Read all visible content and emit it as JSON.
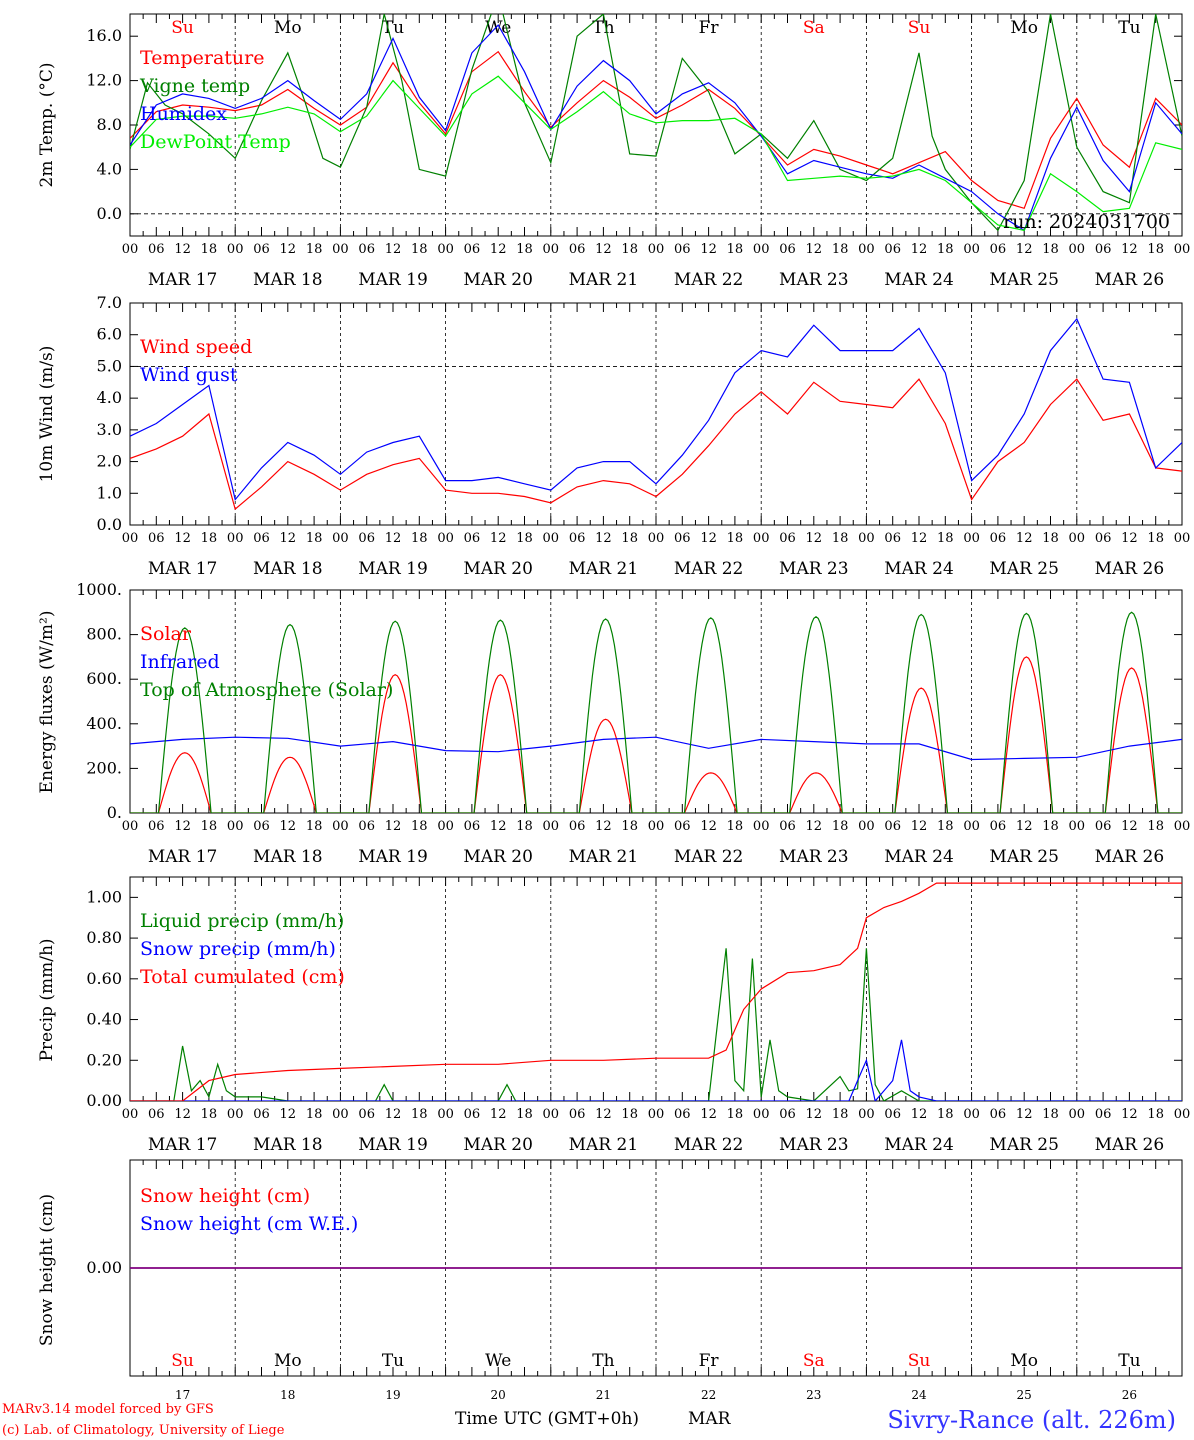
{
  "station": "Sivry-Rance (alt. 226m)",
  "run_label": "run: 2024031700",
  "credits": [
    "MARv3.14 model forced by GFS",
    "(c) Lab. of Climatology, University of Liege"
  ],
  "x_axis": {
    "hour_ticks": [
      "00",
      "06",
      "12",
      "18"
    ],
    "dates": [
      "MAR 17",
      "MAR 18",
      "MAR 19",
      "MAR 20",
      "MAR 21",
      "MAR 22",
      "MAR 23",
      "MAR 24",
      "MAR 25",
      "MAR 26"
    ],
    "day_numbers": [
      "17",
      "18",
      "19",
      "20",
      "21",
      "22",
      "23",
      "24",
      "25",
      "26"
    ],
    "weekdays": [
      "Su",
      "Mo",
      "Tu",
      "We",
      "Th",
      "Fr",
      "Sa",
      "Su",
      "Mo",
      "Tu"
    ],
    "weekend_flags": [
      true,
      false,
      false,
      false,
      false,
      false,
      true,
      true,
      false,
      false
    ],
    "title": "Time UTC (GMT+0h)",
    "month": "MAR"
  },
  "colors": {
    "red": "#ff0000",
    "green": "#008000",
    "blue": "#0000ff",
    "lightgreen": "#00ee00",
    "weekend": "#ff0000",
    "purple": "#800080"
  },
  "chart_data": [
    {
      "type": "line",
      "ylabel": "2m Temp. (°C)",
      "ylim": [
        -2.0,
        18.0
      ],
      "yticks": [
        "0.0",
        "4.0",
        "8.0",
        "12.0",
        "16.0"
      ],
      "x_unit": "hours since MAR 17 00 UTC",
      "series": [
        {
          "name": "Temperature",
          "color": "red",
          "x": [
            0,
            6,
            12,
            18,
            24,
            30,
            36,
            42,
            48,
            54,
            60,
            66,
            72,
            78,
            84,
            90,
            96,
            102,
            108,
            114,
            120,
            126,
            132,
            138,
            144,
            150,
            156,
            162,
            168,
            174,
            180,
            186,
            192,
            198,
            204,
            210,
            216,
            222,
            228,
            234,
            240
          ],
          "y": [
            6.8,
            9.2,
            9.8,
            9.6,
            9.3,
            9.8,
            11.2,
            9.5,
            8.0,
            9.6,
            13.6,
            10.0,
            7.2,
            12.8,
            14.6,
            11.0,
            7.8,
            10.0,
            12.0,
            10.5,
            8.6,
            9.8,
            11.2,
            9.5,
            7.0,
            4.4,
            5.8,
            5.2,
            4.4,
            3.6,
            4.6,
            5.6,
            3.0,
            1.2,
            0.5,
            6.8,
            10.4,
            6.2,
            4.2,
            10.4,
            8.0
          ]
        },
        {
          "name": "Vigne temp",
          "color": "green",
          "x": [
            0,
            4,
            8,
            12,
            18,
            24,
            30,
            36,
            40,
            44,
            48,
            54,
            58,
            62,
            66,
            72,
            78,
            84,
            90,
            96,
            102,
            108,
            114,
            120,
            126,
            132,
            138,
            144,
            150,
            156,
            162,
            168,
            174,
            180,
            183,
            186,
            192,
            198,
            204,
            210,
            216,
            222,
            228,
            234,
            240
          ],
          "y": [
            5.8,
            11.8,
            9.8,
            9.0,
            7.2,
            5.0,
            10.2,
            14.5,
            10.0,
            5.0,
            4.2,
            9.6,
            18.0,
            12.0,
            4.0,
            3.4,
            13.0,
            19.8,
            10.0,
            4.6,
            16.0,
            18.0,
            5.4,
            5.2,
            14.0,
            11.0,
            5.4,
            7.2,
            5.0,
            8.4,
            4.0,
            3.0,
            5.0,
            14.5,
            7.0,
            4.0,
            1.0,
            -1.5,
            3.0,
            18.0,
            6.0,
            2.0,
            1.0,
            18.0,
            7.0
          ]
        },
        {
          "name": "Humidex",
          "color": "blue",
          "x": [
            0,
            6,
            12,
            18,
            24,
            30,
            36,
            42,
            48,
            54,
            60,
            66,
            72,
            78,
            84,
            90,
            96,
            102,
            108,
            114,
            120,
            126,
            132,
            138,
            144,
            150,
            156,
            162,
            168,
            174,
            180,
            186,
            192,
            198,
            204,
            210,
            216,
            222,
            228,
            234,
            240
          ],
          "y": [
            6.2,
            9.8,
            10.8,
            10.4,
            9.5,
            10.4,
            12.0,
            10.2,
            8.5,
            10.8,
            15.8,
            10.5,
            7.5,
            14.5,
            17.0,
            12.8,
            7.6,
            11.5,
            13.8,
            12.0,
            9.0,
            10.8,
            11.8,
            10.0,
            7.0,
            3.6,
            4.8,
            4.2,
            3.6,
            3.2,
            4.4,
            3.2,
            2.0,
            0.0,
            -1.5,
            5.0,
            9.6,
            4.8,
            2.0,
            10.0,
            7.2
          ]
        },
        {
          "name": "DewPoint Temp",
          "color": "lightgreen",
          "x": [
            0,
            6,
            12,
            18,
            24,
            30,
            36,
            42,
            48,
            54,
            60,
            66,
            72,
            78,
            84,
            90,
            96,
            102,
            108,
            114,
            120,
            126,
            132,
            138,
            144,
            150,
            156,
            162,
            168,
            174,
            180,
            186,
            192,
            198,
            204,
            210,
            216,
            222,
            228,
            234,
            240
          ],
          "y": [
            6.0,
            8.5,
            8.8,
            8.8,
            8.6,
            9.0,
            9.6,
            9.0,
            7.4,
            8.8,
            12.0,
            9.5,
            7.0,
            10.8,
            12.4,
            10.0,
            7.6,
            9.2,
            11.0,
            9.0,
            8.2,
            8.4,
            8.4,
            8.6,
            7.2,
            3.0,
            3.2,
            3.4,
            3.2,
            3.4,
            4.0,
            3.0,
            1.0,
            -1.0,
            -1.5,
            3.6,
            2.0,
            0.2,
            0.5,
            6.4,
            5.8
          ]
        }
      ]
    },
    {
      "type": "line",
      "ylabel": "10m Wind (m/s)",
      "ylim": [
        0.0,
        7.0
      ],
      "yticks": [
        "0.0",
        "1.0",
        "2.0",
        "3.0",
        "4.0",
        "5.0",
        "6.0",
        "7.0"
      ],
      "dashed_reference": 5.0,
      "x_unit": "hours since MAR 17 00 UTC",
      "series": [
        {
          "name": "Wind speed",
          "color": "red",
          "x": [
            0,
            6,
            12,
            18,
            24,
            30,
            36,
            42,
            48,
            54,
            60,
            66,
            72,
            78,
            84,
            90,
            96,
            102,
            108,
            114,
            120,
            126,
            132,
            138,
            144,
            150,
            156,
            162,
            168,
            174,
            180,
            186,
            192,
            198,
            204,
            210,
            216,
            222,
            228,
            234,
            240
          ],
          "y": [
            2.1,
            2.4,
            2.8,
            3.5,
            0.5,
            1.2,
            2.0,
            1.6,
            1.1,
            1.6,
            1.9,
            2.1,
            1.1,
            1.0,
            1.0,
            0.9,
            0.7,
            1.2,
            1.4,
            1.3,
            0.9,
            1.6,
            2.5,
            3.5,
            4.2,
            3.5,
            4.5,
            3.9,
            3.8,
            3.7,
            4.6,
            3.2,
            0.8,
            2.0,
            2.6,
            3.8,
            4.6,
            3.3,
            3.5,
            1.8,
            1.7
          ]
        },
        {
          "name": "Wind gust",
          "color": "blue",
          "x": [
            0,
            6,
            12,
            18,
            24,
            30,
            36,
            42,
            48,
            54,
            60,
            66,
            72,
            78,
            84,
            90,
            96,
            102,
            108,
            114,
            120,
            126,
            132,
            138,
            144,
            150,
            156,
            162,
            168,
            174,
            180,
            186,
            192,
            198,
            204,
            210,
            216,
            222,
            228,
            234,
            240
          ],
          "y": [
            2.8,
            3.2,
            3.8,
            4.4,
            0.8,
            1.8,
            2.6,
            2.2,
            1.6,
            2.3,
            2.6,
            2.8,
            1.4,
            1.4,
            1.5,
            1.3,
            1.1,
            1.8,
            2.0,
            2.0,
            1.3,
            2.2,
            3.3,
            4.8,
            5.5,
            5.3,
            6.3,
            5.5,
            5.5,
            5.5,
            6.2,
            4.8,
            1.4,
            2.2,
            3.5,
            5.5,
            6.5,
            4.6,
            4.5,
            1.8,
            2.6
          ]
        }
      ]
    },
    {
      "type": "line",
      "ylabel": "Energy fluxes (W/m²)",
      "ylim": [
        0,
        1000
      ],
      "yticks": [
        "0.",
        "200.",
        "400.",
        "600.",
        "800.",
        "1000."
      ],
      "x_unit": "hours since MAR 17 00 UTC",
      "diurnal_window_hours": [
        6.5,
        18.5
      ],
      "series": [
        {
          "name": "Solar",
          "color": "red",
          "daily_peak": [
            270,
            250,
            620,
            620,
            420,
            180,
            180,
            560,
            700,
            650
          ]
        },
        {
          "name": "Infrared",
          "color": "blue",
          "x": [
            0,
            12,
            24,
            36,
            48,
            60,
            72,
            84,
            96,
            108,
            120,
            132,
            144,
            156,
            168,
            180,
            192,
            204,
            216,
            228,
            240
          ],
          "y": [
            310,
            330,
            340,
            335,
            300,
            320,
            280,
            275,
            300,
            330,
            340,
            290,
            330,
            320,
            310,
            310,
            240,
            245,
            250,
            300,
            330
          ]
        },
        {
          "name": "Top of Atmosphere (Solar)",
          "color": "green",
          "daily_peak": [
            830,
            845,
            860,
            865,
            870,
            875,
            880,
            890,
            895,
            900
          ]
        }
      ]
    },
    {
      "type": "line",
      "ylabel": "Precip (mm/h)",
      "ylim": [
        0.0,
        1.1
      ],
      "yticks": [
        "0.00",
        "0.20",
        "0.40",
        "0.60",
        "0.80",
        "1.00"
      ],
      "x_unit": "hours since MAR 17 00 UTC",
      "series": [
        {
          "name": "Liquid precip (mm/h)",
          "color": "green",
          "x": [
            0,
            10,
            12,
            14,
            16,
            18,
            20,
            22,
            24,
            30,
            36,
            56,
            58,
            60,
            84,
            86,
            88,
            132,
            136,
            138,
            140,
            142,
            144,
            146,
            148,
            150,
            156,
            162,
            164,
            166,
            168,
            170,
            172,
            176,
            180,
            184,
            240
          ],
          "y": [
            0,
            0,
            0.27,
            0.05,
            0.1,
            0.02,
            0.18,
            0.05,
            0.02,
            0.02,
            0.0,
            0.0,
            0.08,
            0.0,
            0.0,
            0.08,
            0.0,
            0.0,
            0.75,
            0.1,
            0.05,
            0.7,
            0.02,
            0.3,
            0.05,
            0.02,
            0.0,
            0.12,
            0.05,
            0.06,
            0.75,
            0.08,
            0.0,
            0.05,
            0.0,
            0.0,
            0.0
          ]
        },
        {
          "name": "Snow precip (mm/h)",
          "color": "blue",
          "x": [
            0,
            164,
            166,
            168,
            170,
            174,
            176,
            178,
            180,
            184,
            240
          ],
          "y": [
            0,
            0,
            0.1,
            0.2,
            0.0,
            0.1,
            0.3,
            0.05,
            0.02,
            0.0,
            0.0
          ]
        },
        {
          "name": "Total cumulated (cm)",
          "color": "red",
          "x": [
            0,
            12,
            18,
            24,
            36,
            48,
            60,
            72,
            84,
            96,
            108,
            120,
            132,
            136,
            140,
            144,
            150,
            156,
            162,
            166,
            168,
            172,
            176,
            180,
            184,
            240
          ],
          "y": [
            0,
            0,
            0.1,
            0.13,
            0.15,
            0.16,
            0.17,
            0.18,
            0.18,
            0.2,
            0.2,
            0.21,
            0.21,
            0.25,
            0.45,
            0.55,
            0.63,
            0.64,
            0.67,
            0.75,
            0.9,
            0.95,
            0.98,
            1.02,
            1.07,
            1.07
          ]
        }
      ]
    },
    {
      "type": "line",
      "ylabel": "Snow height (cm)",
      "ylim": [
        -1,
        1
      ],
      "yticks": [
        "0.00"
      ],
      "x_unit": "hours since MAR 17 00 UTC",
      "series": [
        {
          "name": "Snow height (cm)",
          "color": "red",
          "x": [
            0,
            240
          ],
          "y": [
            0,
            0
          ]
        },
        {
          "name": "Snow height (cm W.E.)",
          "color": "blue",
          "x": [
            0,
            240
          ],
          "y": [
            0,
            0
          ]
        }
      ]
    }
  ]
}
